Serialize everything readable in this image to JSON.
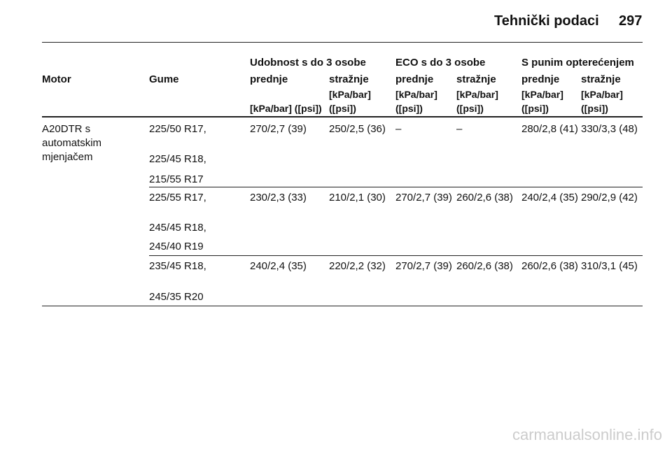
{
  "header": {
    "title": "Tehnički podaci",
    "page": "297"
  },
  "table": {
    "groups": [
      "Udobnost s do 3 osobe",
      "ECO s do 3 osobe",
      "S punim opterećenjem"
    ],
    "columns": [
      "Motor",
      "Gume",
      "prednje",
      "stražnje",
      "prednje",
      "stražnje",
      "prednje",
      "stražnje"
    ],
    "units": [
      "[kPa/bar] ([psi])",
      "[kPa/bar] ([psi])",
      "[kPa/bar] ([psi])",
      "[kPa/bar] ([psi])",
      "[kPa/bar] ([psi])",
      "[kPa/bar] ([psi])"
    ],
    "motor": "A20DTR s automatskim mjenjačem",
    "rows": [
      {
        "tyres": [
          "225/50 R17,",
          "225/45 R18,",
          "215/55 R17"
        ],
        "pressures": [
          "270/2,7 (39)",
          "250/2,5 (36)",
          "–",
          "–",
          "280/2,8 (41)",
          "330/3,3 (48)"
        ]
      },
      {
        "tyres": [
          "225/55 R17,",
          "245/45 R18,",
          "245/40 R19"
        ],
        "pressures": [
          "230/2,3 (33)",
          "210/2,1 (30)",
          "270/2,7 (39)",
          "260/2,6 (38)",
          "240/2,4 (35)",
          "290/2,9 (42)"
        ]
      },
      {
        "tyres": [
          "235/45 R18,",
          "245/35 R20"
        ],
        "pressures": [
          "240/2,4 (35)",
          "220/2,2 (32)",
          "270/2,7 (39)",
          "260/2,6 (38)",
          "260/2,6 (38)",
          "310/3,1 (45)"
        ]
      }
    ]
  },
  "watermark": "carmanualsonline.info"
}
